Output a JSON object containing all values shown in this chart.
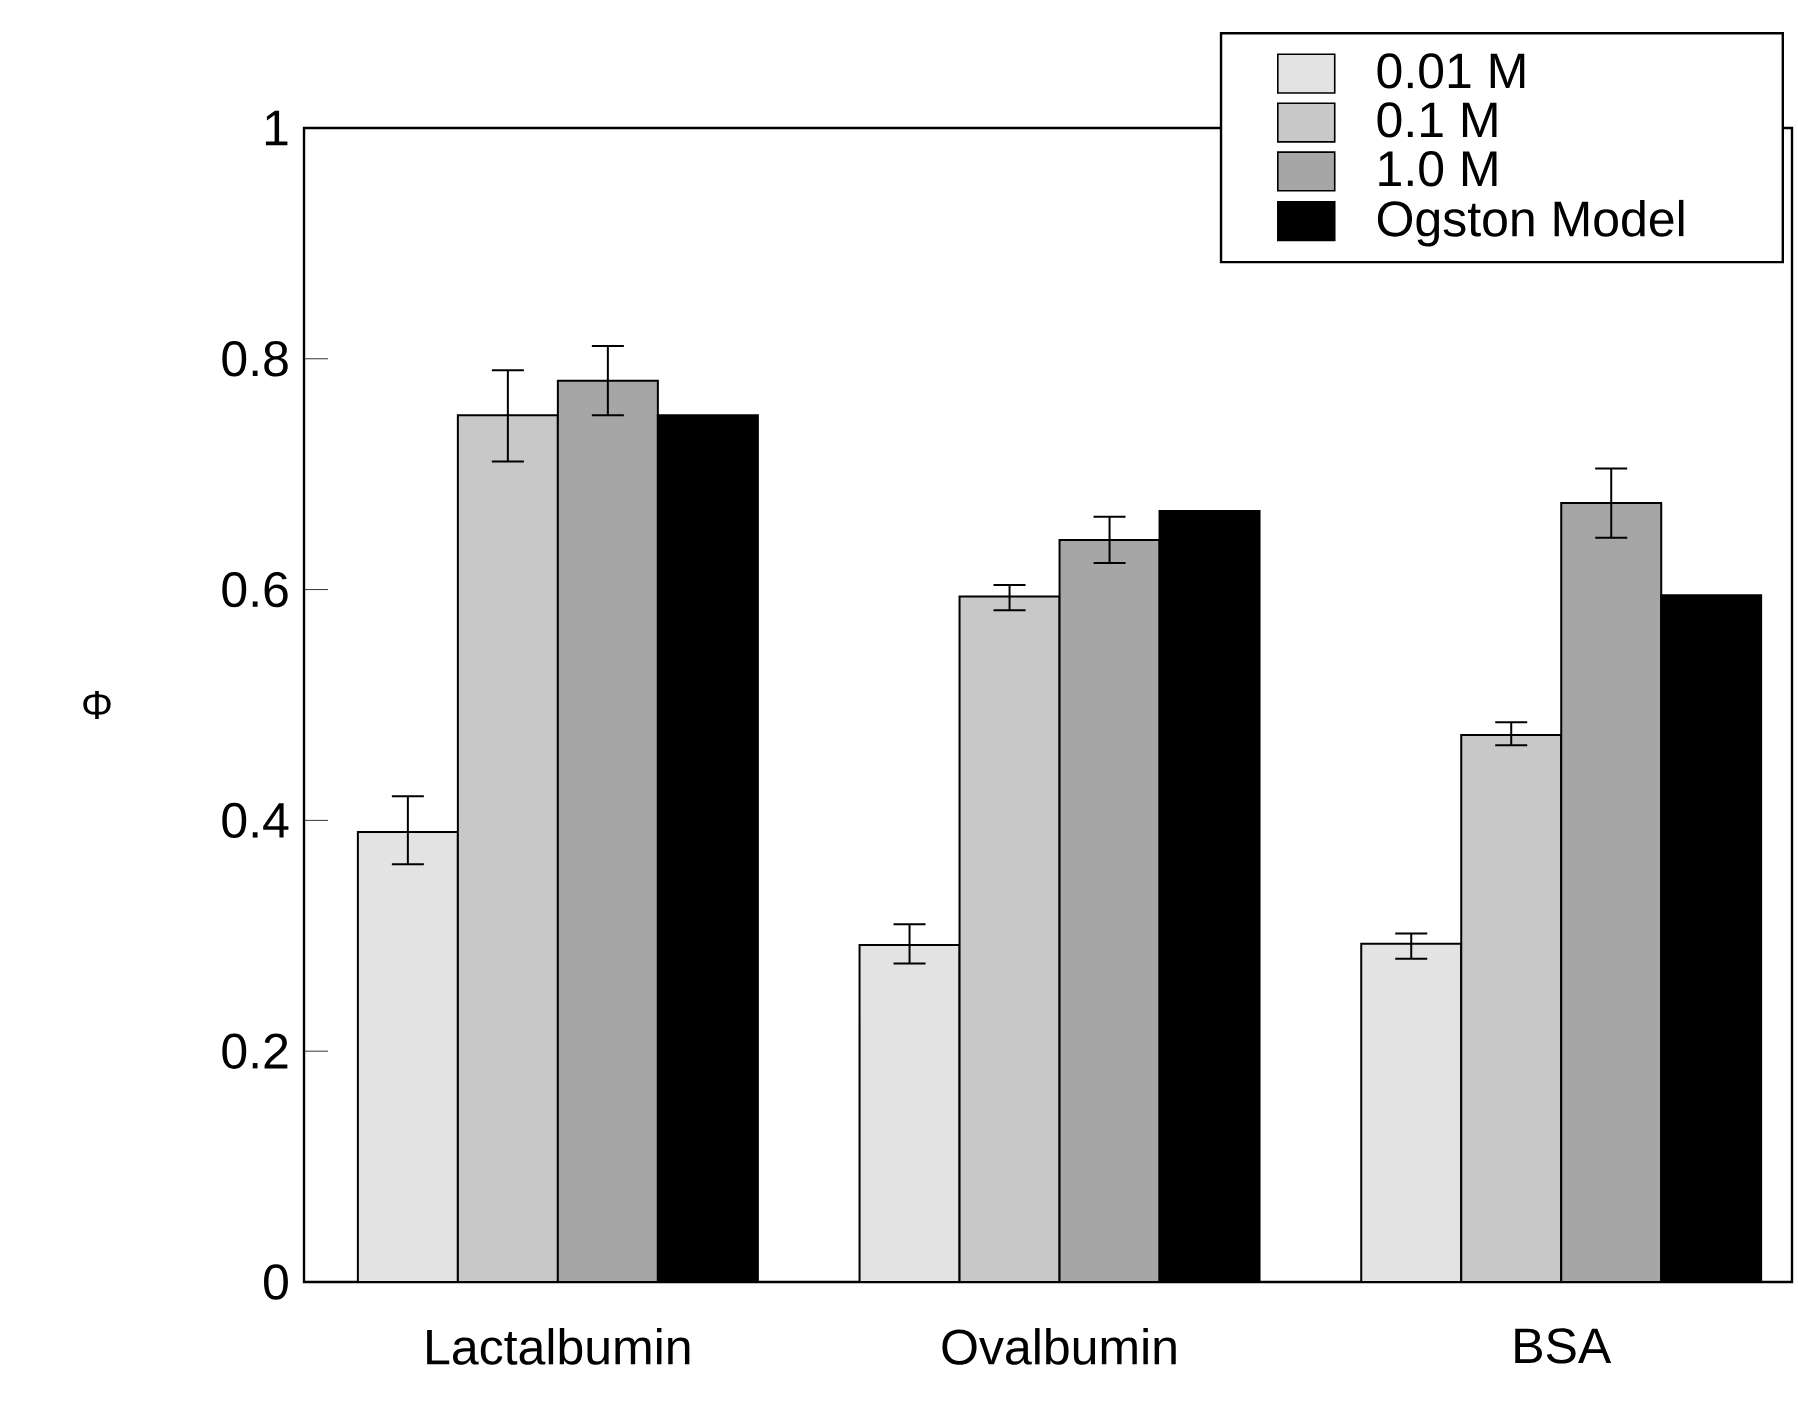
{
  "chart_data": {
    "type": "bar",
    "ylabel": "Φ",
    "categories": [
      "Lactalbumin",
      "Ovalbumin",
      "BSA"
    ],
    "series": [
      {
        "name": "0.01 M",
        "color": "#e3e3e3",
        "values": [
          0.39,
          0.292,
          0.293
        ],
        "errors": [
          [
            0.362,
            0.421
          ],
          [
            0.276,
            0.31
          ],
          [
            0.28,
            0.302
          ]
        ]
      },
      {
        "name": "0.1 M",
        "color": "#c8c8c8",
        "values": [
          0.751,
          0.594,
          0.474
        ],
        "errors": [
          [
            0.711,
            0.79
          ],
          [
            0.582,
            0.604
          ],
          [
            0.465,
            0.485
          ]
        ]
      },
      {
        "name": "1.0 M",
        "color": "#a6a6a6",
        "values": [
          0.781,
          0.643,
          0.675
        ],
        "errors": [
          [
            0.751,
            0.811
          ],
          [
            0.623,
            0.663
          ],
          [
            0.645,
            0.705
          ]
        ]
      },
      {
        "name": "Ogston Model",
        "color": "#000000",
        "values": [
          0.751,
          0.668,
          0.595
        ]
      }
    ],
    "ylim": [
      0,
      1
    ],
    "yticks": [
      0,
      0.2,
      0.4,
      0.6,
      0.8,
      1
    ],
    "grid": false,
    "legend": "top right"
  }
}
